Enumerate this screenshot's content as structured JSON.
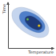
{
  "chart_data": {
    "type": "contour",
    "x_label": "Temperature",
    "y_label": "Time",
    "xlim": [
      0,
      10
    ],
    "ylim": [
      0,
      10
    ],
    "tick_labels": false,
    "series": [
      {
        "type": "region",
        "color": "#c5d5ee",
        "x": [
          8.7,
          8.6,
          6.3,
          3.2,
          1.1,
          1.2,
          3.5,
          6.6
        ],
        "values": [
          3.0,
          5.2,
          7.7,
          8.9,
          8.2,
          6.0,
          3.6,
          2.3
        ]
      },
      {
        "type": "region",
        "color": "#4f7fc9",
        "x": [
          7.9,
          7.9,
          6.3,
          4.1,
          2.7,
          2.7,
          4.3,
          6.5
        ],
        "values": [
          3.9,
          5.4,
          7.1,
          8.0,
          7.5,
          6.0,
          4.3,
          3.4
        ]
      },
      {
        "type": "region",
        "color": "#1e3a78",
        "x": [
          7.3,
          7.3,
          6.2,
          4.9,
          3.9,
          3.9,
          5.0,
          6.4
        ],
        "values": [
          4.3,
          5.3,
          6.4,
          7.0,
          6.7,
          5.7,
          4.6,
          4.0
        ]
      },
      {
        "type": "scatter",
        "marker": "circle",
        "colors": [
          "#5cb85c",
          "#f0d020"
        ],
        "x": [
          4.3,
          6.8
        ],
        "values": [
          6.3,
          4.9
        ]
      }
    ]
  }
}
